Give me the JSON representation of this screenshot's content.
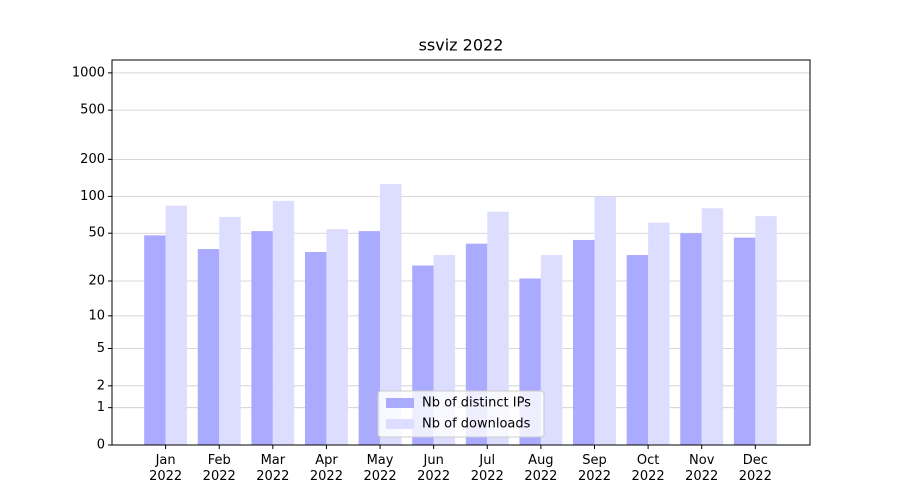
{
  "chart_data": {
    "type": "bar",
    "title": "ssviz 2022",
    "categories": [
      "Jan\n2022",
      "Feb\n2022",
      "Mar\n2022",
      "Apr\n2022",
      "May\n2022",
      "Jun\n2022",
      "Jul\n2022",
      "Aug\n2022",
      "Sep\n2022",
      "Oct\n2022",
      "Nov\n2022",
      "Dec\n2022"
    ],
    "series": [
      {
        "name": "Nb of distinct IPs",
        "color": "#aaaaff",
        "values": [
          48,
          37,
          52,
          35,
          52,
          27,
          41,
          21,
          44,
          33,
          50,
          46
        ]
      },
      {
        "name": "Nb of downloads",
        "color": "#ddddff",
        "values": [
          84,
          68,
          92,
          54,
          126,
          33,
          75,
          33,
          100,
          61,
          80,
          69
        ]
      }
    ],
    "yscale": "log1p",
    "ylim": [
      0,
      1270
    ],
    "yticks": [
      0,
      1,
      2,
      5,
      10,
      20,
      50,
      100,
      200,
      500,
      1000
    ],
    "grid": true,
    "legend": "lower center"
  }
}
